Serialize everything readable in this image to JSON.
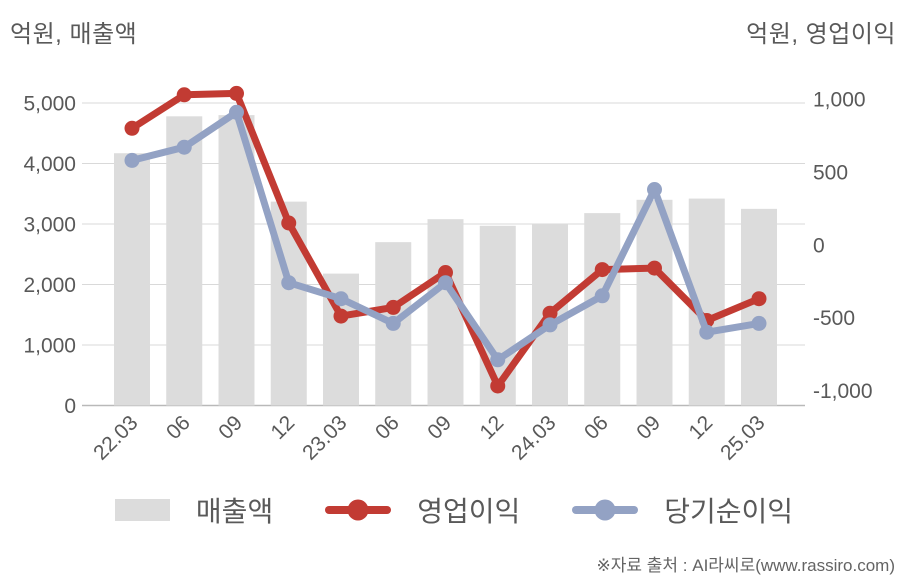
{
  "header": {
    "left_axis_title": "억원, 매출액",
    "right_axis_title": "억원, 영업이익"
  },
  "footer": {
    "source": "※자료 출처 : AI라씨로(www.rassiro.com)"
  },
  "colors": {
    "bar": "#dcdcdc",
    "operating_profit": "#c23b33",
    "net_income": "#93a2c4",
    "gridline": "#d9d9d9",
    "axis_line": "#b9b9b9",
    "tick_text": "#595959"
  },
  "chart_data": {
    "type": "combo-bar-line",
    "title": "",
    "categories": [
      "22.03",
      "06",
      "09",
      "12",
      "23.03",
      "06",
      "09",
      "12",
      "24.03",
      "06",
      "09",
      "12",
      "25.03"
    ],
    "left_axis": {
      "title": "억원, 매출액",
      "unit": "억원",
      "ticks": [
        "5,000",
        "4,000",
        "3,000",
        "2,000",
        "1,000",
        "0"
      ],
      "tick_values": [
        5000,
        4000,
        3000,
        2000,
        1000,
        0
      ],
      "range": [
        0,
        5000
      ],
      "grid": true
    },
    "right_axis": {
      "title": "억원, 영업이익",
      "unit": "억원",
      "ticks": [
        "1,000",
        "500",
        "0",
        "-500",
        "-1,000"
      ],
      "tick_values": [
        1000,
        500,
        0,
        -500,
        -1000
      ],
      "range": [
        -1000,
        1000
      ],
      "grid": false
    },
    "legend_position": "bottom",
    "series": [
      {
        "key": "revenue",
        "name": "매출액",
        "type": "bar",
        "axis": "left",
        "color": "#dcdcdc",
        "values": [
          4170,
          4780,
          4800,
          3370,
          2180,
          2700,
          3080,
          2970,
          3000,
          3180,
          3400,
          3420,
          3250
        ]
      },
      {
        "key": "operating-profit",
        "name": "영업이익",
        "type": "line",
        "axis": "right",
        "color": "#c23b33",
        "values": [
          800,
          1030,
          1040,
          150,
          -490,
          -430,
          -190,
          -970,
          -470,
          -170,
          -160,
          -520,
          -370
        ]
      },
      {
        "key": "net-income",
        "name": "당기순이익",
        "type": "line",
        "axis": "right",
        "color": "#93a2c4",
        "values": [
          580,
          670,
          910,
          -260,
          -370,
          -540,
          -260,
          -790,
          -550,
          -350,
          380,
          -600,
          -540
        ]
      }
    ]
  }
}
